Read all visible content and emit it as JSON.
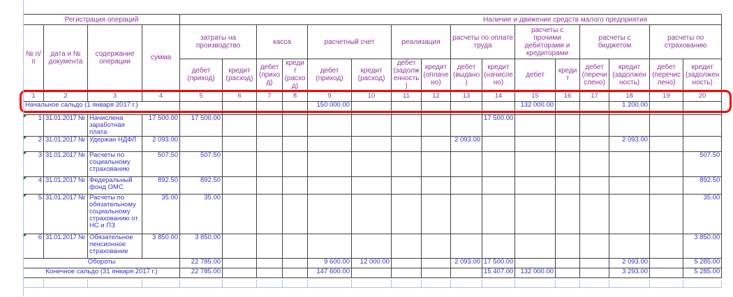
{
  "table": {
    "title_left": "Регистрация операций",
    "title_right": "Наличие и движение средств малого предприятия",
    "reg_headers": [
      "№ п/п",
      "дата и № документа",
      "содержание операции",
      "сумма"
    ],
    "groups": [
      "затраты на производство",
      "касса",
      "расчетный счет",
      "реализация",
      "расчеты по оплате труда",
      "расчеты с прочими дебиторами и кредиторами",
      "расчеты с бюджетом",
      "расчеты по страхованию"
    ],
    "subheaders": [
      "дебет (приход)",
      "кредит (расход)",
      "дебет (приход)",
      "кредит (расход)",
      "дебет (приход)",
      "кредит (расход)",
      "дебет (задолженность)",
      "кредит (оплачено)",
      "дебет (выдано)",
      "кредит (начислено)",
      "дебет",
      "кредит",
      "дебет (перечислено)",
      "кредит (задолженность)",
      "дебет (перечислено)",
      "кредит (задолженность)"
    ],
    "col_numbers": [
      "1",
      "2",
      "3",
      "4",
      "5",
      "6",
      "7",
      "8",
      "9",
      "10",
      "11",
      "12",
      "13",
      "14",
      "15",
      "16",
      "17",
      "18",
      "19",
      "20"
    ],
    "opening_balance": {
      "label": "Начальное сальдо (1 января 2017 г.)",
      "values": {
        "9": "150 000.00",
        "15": "132 000.00",
        "18": "1 200.00"
      }
    },
    "rows": [
      {
        "num": "1",
        "date": "31.01.2017 № 1",
        "content": "Начислена заработная плата",
        "sum": "17 500.00",
        "values": {
          "5": "17 500.00",
          "14": "17 500.00"
        }
      },
      {
        "num": "2",
        "date": "31.01.2017 № 1",
        "content": "Удержан НДФЛ",
        "sum": "2 093.00",
        "values": {
          "13": "2 093.00",
          "18": "2 093.00"
        }
      },
      {
        "num": "3",
        "date": "31.01.2017 № 1",
        "content": "Расчеты по социальному страхованию",
        "sum": "507.50",
        "values": {
          "5": "507.50",
          "20": "507.50"
        }
      },
      {
        "num": "4",
        "date": "31.01.2017 № 1",
        "content": "Федеральный фонд ОМС",
        "sum": "892.50",
        "values": {
          "5": "892.50",
          "20": "892.50"
        }
      },
      {
        "num": "5",
        "date": "31.01.2017 № 1",
        "content": "Расчеты по обязательному социальному страхованию от НС и ПЗ",
        "sum": "35.00",
        "values": {
          "5": "35.00",
          "20": "35.00"
        }
      },
      {
        "num": "6",
        "date": "31.01.2017 № 1",
        "content": "Обязательное пенсионное страхование",
        "sum": "3 850.00",
        "values": {
          "5": "3 850.00",
          "20": "3 850.00"
        }
      }
    ],
    "turnovers": {
      "label": "Обороты",
      "values": {
        "5": "22 785.00",
        "9": "9 600.00",
        "10": "12 000.00",
        "13": "2 093.00",
        "14": "17 500.00",
        "18": "2 093.00",
        "20": "5 285.00"
      }
    },
    "closing_balance": {
      "label": "Конечное сальдо (31 января 2017 г.)",
      "values": {
        "5": "22 785.00",
        "9": "147 600.00",
        "14": "15 407.00",
        "15": "132 000.00",
        "18": "3 293.00",
        "20": "5 285.00"
      }
    }
  },
  "colors": {
    "header_text": "#9333A0",
    "data_text": "#3333CC",
    "border": "#424242",
    "gridline": "#ADC2D8",
    "highlight": "#FF0000",
    "marker": "#1F7A1F"
  }
}
